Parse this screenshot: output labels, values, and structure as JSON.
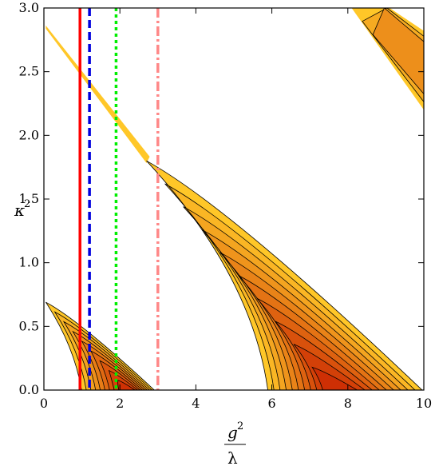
{
  "chart_data": {
    "type": "contour",
    "title": "",
    "xlabel": {
      "numerator": "g",
      "numerator_sup": "2",
      "denominator": "λ"
    },
    "ylabel": {
      "base": "κ",
      "sup": "2"
    },
    "xlim": [
      0,
      10
    ],
    "ylim": [
      0,
      3
    ],
    "xticks": [
      0,
      2,
      4,
      6,
      8,
      10
    ],
    "yticks": [
      0.0,
      0.5,
      1.0,
      1.5,
      2.0,
      2.5,
      3.0
    ],
    "xtick_labels": [
      "0",
      "2",
      "4",
      "6",
      "8",
      "10"
    ],
    "ytick_labels": [
      "0.0",
      "0.5",
      "1.0",
      "1.5",
      "2.0",
      "2.5",
      "3.0"
    ],
    "grid": false,
    "regions": [
      {
        "name": "lobe-1",
        "tip": [
          0.05,
          0.69
        ],
        "base": [
          1.0,
          2.95
        ],
        "vertex": [
          2.3,
          0.0
        ],
        "levels": 8
      },
      {
        "name": "lobe-2",
        "tip": [
          2.7,
          1.8
        ],
        "base": [
          5.9,
          10.0
        ],
        "vertex": [
          7.8,
          0.0
        ],
        "levels": 9
      },
      {
        "name": "lobe-3",
        "tip": [
          8.1,
          3.0
        ],
        "base_top": [
          9.1,
          10.0
        ],
        "edge": [
          [
            10.0,
            2.2
          ],
          [
            10.0,
            2.82
          ]
        ],
        "levels": 2
      }
    ],
    "band": {
      "start": [
        0.05,
        2.85
      ],
      "end": [
        2.7,
        1.82
      ],
      "join": [
        1.9,
        2.06
      ]
    },
    "vertical_lines": [
      {
        "x": 0.95,
        "color": "#ff0000",
        "style": "solid"
      },
      {
        "x": 1.2,
        "color": "#0000dd",
        "style": "dashed"
      },
      {
        "x": 1.9,
        "color": "#00ee00",
        "style": "dotted"
      },
      {
        "x": 3.0,
        "color": "#ff8888",
        "style": "dashdot"
      }
    ],
    "colors": {
      "outer": "#ffc728",
      "inner": "#c81e00",
      "contour": "#000000",
      "frame": "#000000"
    }
  }
}
